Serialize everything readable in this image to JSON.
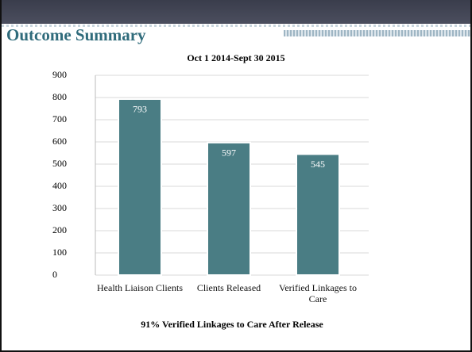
{
  "header": {
    "title": "Outcome Summary"
  },
  "chart_data": {
    "type": "bar",
    "title": "Oct 1 2014-Sept 30 2015",
    "annotation": "91% Verified Linkages to Care After Release",
    "categories": [
      "Health Liaison Clients",
      "Clients Released",
      "Verified Linkages to Care"
    ],
    "values": [
      793,
      597,
      545
    ],
    "color": "#4a7d84",
    "ylim": [
      0,
      900
    ],
    "yticks": [
      0,
      100,
      200,
      300,
      400,
      500,
      600,
      700,
      800,
      900
    ],
    "grid": true
  }
}
